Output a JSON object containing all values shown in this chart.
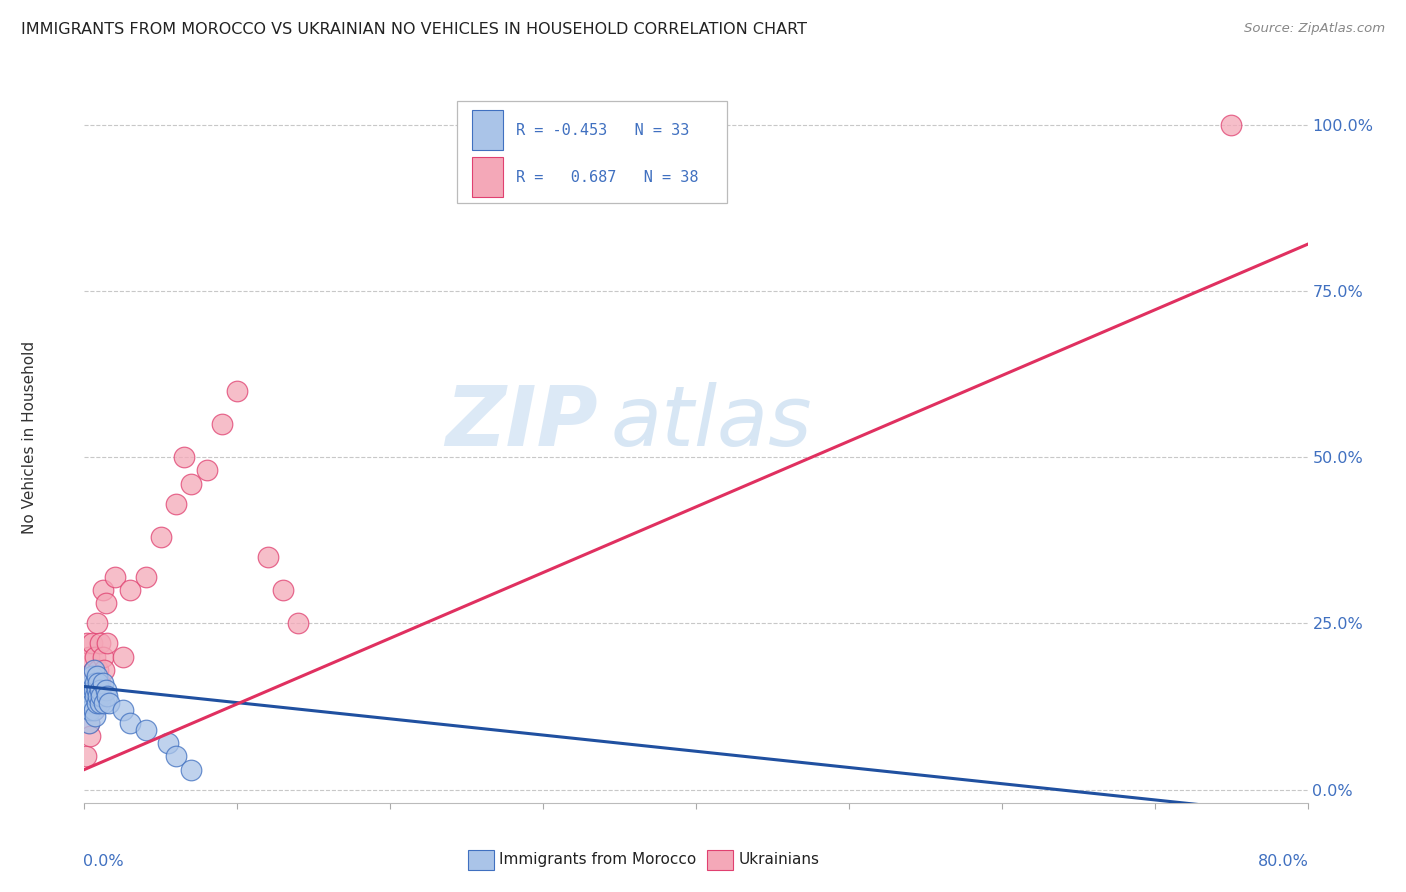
{
  "title": "IMMIGRANTS FROM MOROCCO VS UKRAINIAN NO VEHICLES IN HOUSEHOLD CORRELATION CHART",
  "source": "Source: ZipAtlas.com",
  "ylabel": "No Vehicles in Household",
  "yticks_labels": [
    "100.0%",
    "75.0%",
    "50.0%",
    "25.0%",
    "0.0%"
  ],
  "ytick_vals": [
    1.0,
    0.75,
    0.5,
    0.25,
    0.0
  ],
  "xlim": [
    0.0,
    0.8
  ],
  "ylim": [
    -0.02,
    1.08
  ],
  "morocco_color": "#aac4e8",
  "ukraine_color": "#f4a8b8",
  "morocco_edge_color": "#4070c0",
  "ukraine_edge_color": "#e04070",
  "morocco_line_color": "#2050a0",
  "ukraine_line_color": "#e03060",
  "morocco_R": -0.453,
  "morocco_N": 33,
  "ukraine_R": 0.687,
  "ukraine_N": 38,
  "morocco_scatter_x": [
    0.002,
    0.003,
    0.003,
    0.004,
    0.004,
    0.005,
    0.005,
    0.005,
    0.006,
    0.006,
    0.006,
    0.007,
    0.007,
    0.007,
    0.008,
    0.008,
    0.008,
    0.009,
    0.009,
    0.01,
    0.01,
    0.011,
    0.012,
    0.013,
    0.014,
    0.015,
    0.016,
    0.025,
    0.03,
    0.04,
    0.055,
    0.06,
    0.07
  ],
  "morocco_scatter_y": [
    0.14,
    0.1,
    0.13,
    0.12,
    0.15,
    0.16,
    0.13,
    0.17,
    0.12,
    0.15,
    0.18,
    0.14,
    0.16,
    0.11,
    0.15,
    0.13,
    0.17,
    0.14,
    0.16,
    0.13,
    0.15,
    0.14,
    0.16,
    0.13,
    0.15,
    0.14,
    0.13,
    0.12,
    0.1,
    0.09,
    0.07,
    0.05,
    0.03
  ],
  "ukraine_scatter_x": [
    0.001,
    0.002,
    0.003,
    0.003,
    0.004,
    0.004,
    0.005,
    0.005,
    0.006,
    0.006,
    0.007,
    0.007,
    0.008,
    0.008,
    0.009,
    0.01,
    0.01,
    0.011,
    0.012,
    0.012,
    0.013,
    0.014,
    0.015,
    0.02,
    0.025,
    0.03,
    0.04,
    0.05,
    0.06,
    0.065,
    0.07,
    0.08,
    0.09,
    0.1,
    0.12,
    0.13,
    0.14,
    0.75
  ],
  "ukraine_scatter_y": [
    0.05,
    0.22,
    0.1,
    0.2,
    0.08,
    0.16,
    0.15,
    0.22,
    0.12,
    0.18,
    0.14,
    0.2,
    0.16,
    0.25,
    0.18,
    0.16,
    0.22,
    0.14,
    0.2,
    0.3,
    0.18,
    0.28,
    0.22,
    0.32,
    0.2,
    0.3,
    0.32,
    0.38,
    0.43,
    0.5,
    0.46,
    0.48,
    0.55,
    0.6,
    0.35,
    0.3,
    0.25,
    1.0
  ],
  "morocco_line_x": [
    0.0,
    0.8
  ],
  "morocco_line_y": [
    0.155,
    -0.04
  ],
  "ukraine_line_x": [
    0.0,
    0.8
  ],
  "ukraine_line_y": [
    0.03,
    0.82
  ],
  "watermark_zip": "ZIP",
  "watermark_atlas": "atlas",
  "background_color": "#ffffff",
  "grid_color": "#c8c8c8",
  "tick_color": "#4070c0"
}
